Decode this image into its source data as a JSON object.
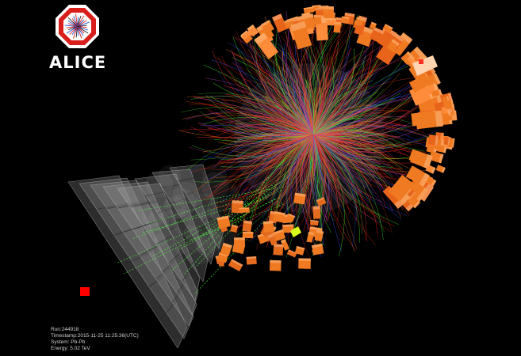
{
  "logo": {
    "text": "ALICE"
  },
  "event_info": {
    "run": "Run:244918",
    "timestamp": "Timestamp:2015-11-25 11:25:36(UTC)",
    "system": "System: Pb-Pb",
    "energy": "Energy: 5.02 TeV"
  },
  "colors": {
    "background": "#000000",
    "logo_red": "#e0201c",
    "calorimeter_orange": "#f07a22",
    "track_red": "#ff2a1a",
    "track_green": "#44ff33",
    "track_blue": "#3050ff",
    "track_magenta": "#c040c0",
    "muon_chamber_grey": "#b0b0b0",
    "hit_marker_red": "#ff0000"
  }
}
